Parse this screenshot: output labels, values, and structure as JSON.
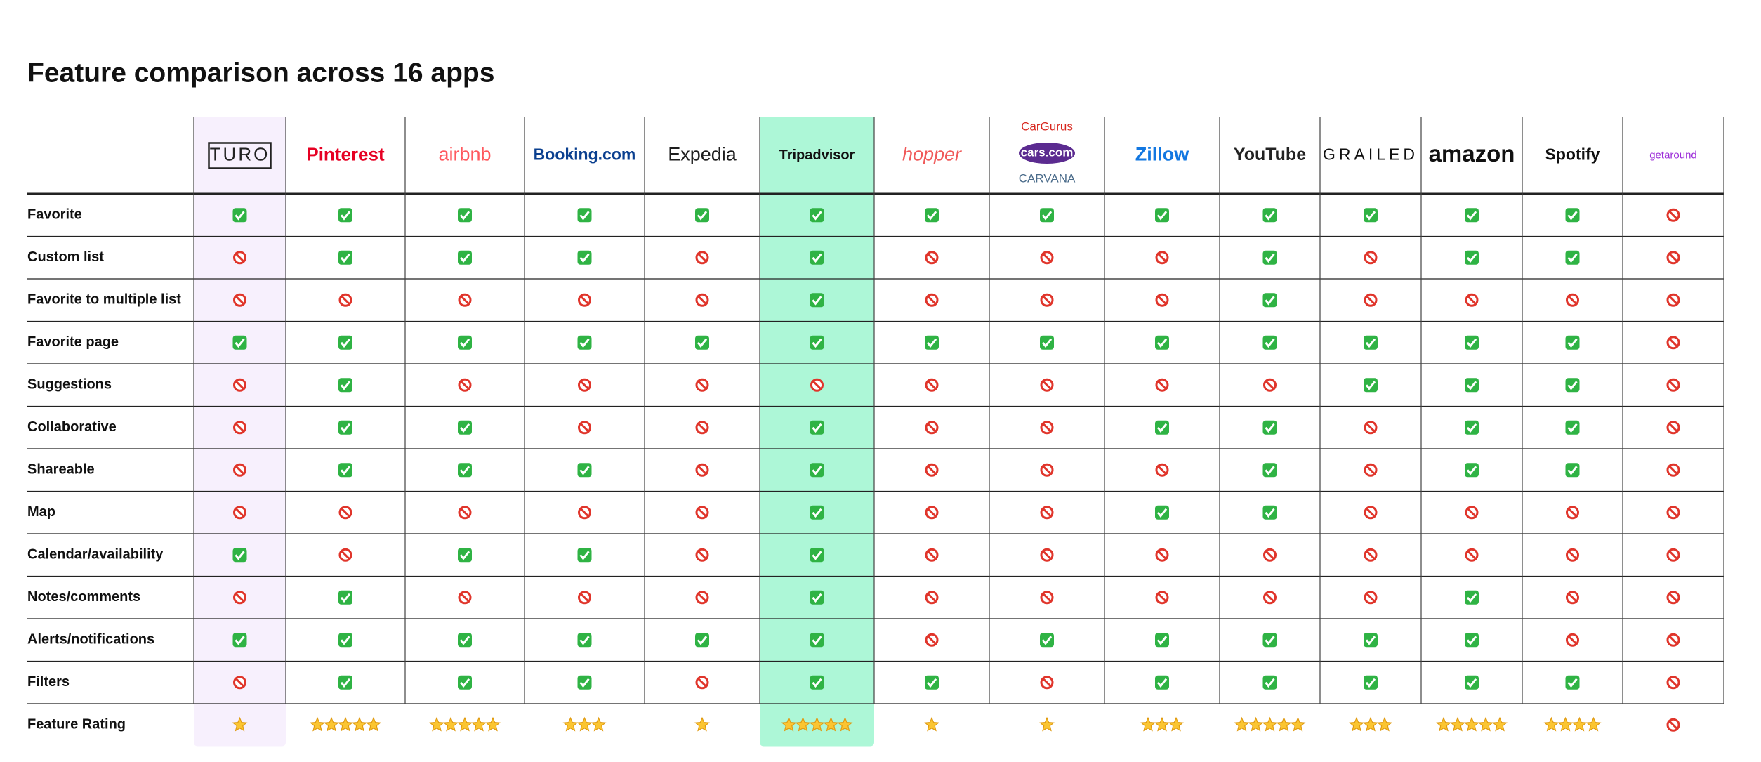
{
  "header": {
    "title": "Feature comparison across 16 apps"
  },
  "table": {
    "apps": [
      [
        "TURO"
      ],
      [
        "Pinterest"
      ],
      [
        "airbnb"
      ],
      [
        "Booking.com"
      ],
      [
        "Expedia"
      ],
      [
        "Tripadvisor"
      ],
      [
        "hopper"
      ],
      [
        "CarGurus",
        "cars.com",
        "CARVANA"
      ],
      [
        "Zillow"
      ],
      [
        "YouTube"
      ],
      [
        "GRAILED"
      ],
      [
        "amazon"
      ],
      [
        "Spotify"
      ],
      [
        "getaround"
      ]
    ],
    "highlight": [
      0,
      5
    ],
    "features": [
      {
        "label": "Favorite",
        "support": [
          true,
          true,
          true,
          true,
          true,
          true,
          true,
          true,
          true,
          true,
          true,
          true,
          true,
          false
        ]
      },
      {
        "label": "Custom list",
        "support": [
          false,
          true,
          true,
          true,
          false,
          true,
          false,
          false,
          false,
          true,
          false,
          true,
          true,
          false
        ]
      },
      {
        "label": "Favorite to multiple list",
        "support": [
          false,
          false,
          false,
          false,
          false,
          true,
          false,
          false,
          false,
          true,
          false,
          false,
          false,
          false
        ]
      },
      {
        "label": "Favorite page",
        "support": [
          true,
          true,
          true,
          true,
          true,
          true,
          true,
          true,
          true,
          true,
          true,
          true,
          true,
          false
        ]
      },
      {
        "label": "Suggestions",
        "support": [
          false,
          true,
          false,
          false,
          false,
          false,
          false,
          false,
          false,
          false,
          true,
          true,
          true,
          false
        ]
      },
      {
        "label": "Collaborative",
        "support": [
          false,
          true,
          true,
          false,
          false,
          true,
          false,
          false,
          true,
          true,
          false,
          true,
          true,
          false
        ]
      },
      {
        "label": "Shareable",
        "support": [
          false,
          true,
          true,
          true,
          false,
          true,
          false,
          false,
          false,
          true,
          false,
          true,
          true,
          false
        ]
      },
      {
        "label": "Map",
        "support": [
          false,
          false,
          false,
          false,
          false,
          true,
          false,
          false,
          true,
          true,
          false,
          false,
          false,
          false
        ]
      },
      {
        "label": "Calendar/availability",
        "support": [
          true,
          false,
          true,
          true,
          false,
          true,
          false,
          false,
          false,
          false,
          false,
          false,
          false,
          false
        ]
      },
      {
        "label": "Notes/comments",
        "support": [
          false,
          true,
          false,
          false,
          false,
          true,
          false,
          false,
          false,
          false,
          false,
          true,
          false,
          false
        ]
      },
      {
        "label": "Alerts/notifications",
        "support": [
          true,
          true,
          true,
          true,
          true,
          true,
          false,
          true,
          true,
          true,
          true,
          true,
          false,
          false
        ]
      },
      {
        "label": "Filters",
        "support": [
          false,
          true,
          true,
          true,
          false,
          true,
          true,
          false,
          true,
          true,
          true,
          true,
          true,
          false
        ]
      }
    ],
    "rating": {
      "label": "Feature Rating",
      "values": [
        1,
        5,
        5,
        3,
        1,
        5,
        1,
        1,
        3,
        5,
        3,
        5,
        4,
        0
      ]
    }
  }
}
